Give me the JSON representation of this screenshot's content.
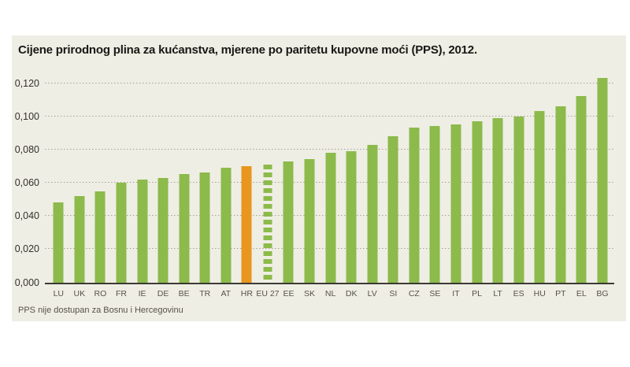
{
  "panel": {
    "background": "#efeee4"
  },
  "title": "Cijene prirodnog plina za kućanstva, mjerene po paritetu kupovne moći (PPS), 2012.",
  "footnote": "PPS nije dostupan za Bosnu i Hercegovinu",
  "chart_data": {
    "type": "bar",
    "title": "Cijene prirodnog plina za kućanstva, mjerene po paritetu kupovne moći (PPS), 2012.",
    "categories": [
      "LU",
      "UK",
      "RO",
      "FR",
      "IE",
      "DE",
      "BE",
      "TR",
      "AT",
      "HR",
      "EU 27",
      "EE",
      "SK",
      "NL",
      "DK",
      "LV",
      "SI",
      "CZ",
      "SE",
      "IT",
      "PL",
      "LT",
      "ES",
      "HU",
      "PT",
      "EL",
      "BG"
    ],
    "values": [
      0.048,
      0.052,
      0.055,
      0.06,
      0.062,
      0.063,
      0.065,
      0.066,
      0.069,
      0.07,
      0.071,
      0.073,
      0.074,
      0.078,
      0.079,
      0.083,
      0.088,
      0.093,
      0.094,
      0.095,
      0.097,
      0.099,
      0.1,
      0.103,
      0.106,
      0.112,
      0.123
    ],
    "xlabel": "",
    "ylabel": "",
    "ylim": [
      0,
      0.13
    ],
    "yticks": {
      "values": [
        0.12,
        0.1,
        0.08,
        0.06,
        0.04,
        0.02,
        0.0
      ],
      "labels": [
        "0,120",
        "0,100",
        "0,080",
        "0,060",
        "0,040",
        "0,020",
        "0,000"
      ]
    },
    "grid": "horizontal-dotted",
    "legend": "none",
    "bar_colors": {
      "default": "#8cba4b",
      "highlight": "#e8961e"
    },
    "highlight_category": "HR",
    "dashed_category": "EU 27",
    "footnote": "PPS nije dostupan za Bosnu i Hercegovinu"
  }
}
